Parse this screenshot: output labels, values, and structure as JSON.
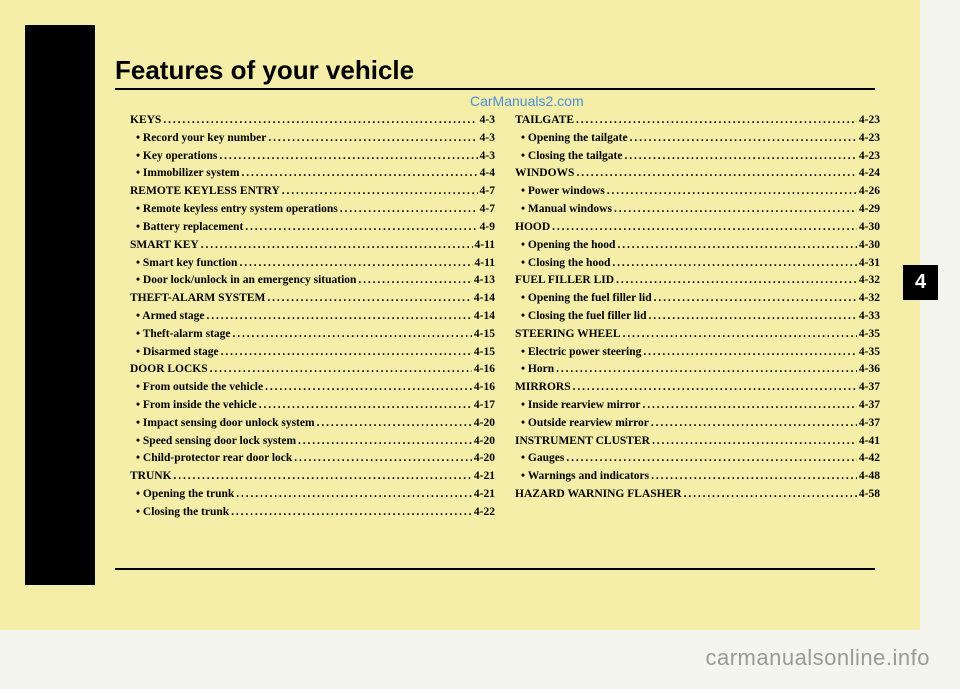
{
  "title": "Features of your vehicle",
  "watermark_top": "CarManuals2.com",
  "chapter_tab": "4",
  "footer_brand": "carmanualsonline.info",
  "colors": {
    "page_bg": "#f5eea8",
    "body_bg": "#f5f5f0",
    "text": "#000000",
    "watermark": "#4a8fd8",
    "footer": "#999999",
    "tab_bg": "#000000",
    "tab_fg": "#ffffff"
  },
  "typography": {
    "title_fontsize": 26,
    "body_fontsize": 11.5,
    "tab_fontsize": 20,
    "footer_fontsize": 22
  },
  "col1": [
    {
      "t": "h",
      "label": "KEYS",
      "page": "4-3"
    },
    {
      "t": "s",
      "label": "• Record your key number",
      "page": "4-3"
    },
    {
      "t": "s",
      "label": "• Key operations",
      "page": "4-3"
    },
    {
      "t": "s",
      "label": "• Immobilizer system",
      "page": "4-4"
    },
    {
      "t": "h",
      "label": "REMOTE KEYLESS ENTRY",
      "page": "4-7"
    },
    {
      "t": "s",
      "label": "• Remote keyless entry system operations",
      "page": "4-7"
    },
    {
      "t": "s",
      "label": "• Battery replacement",
      "page": "4-9"
    },
    {
      "t": "h",
      "label": "SMART KEY",
      "page": "4-11"
    },
    {
      "t": "s",
      "label": "• Smart key function",
      "page": "4-11"
    },
    {
      "t": "s",
      "label": "• Door lock/unlock in an emergency situation",
      "page": "4-13"
    },
    {
      "t": "h",
      "label": "THEFT-ALARM SYSTEM",
      "page": "4-14"
    },
    {
      "t": "s",
      "label": "• Armed stage",
      "page": "4-14"
    },
    {
      "t": "s",
      "label": "• Theft-alarm stage",
      "page": "4-15"
    },
    {
      "t": "s",
      "label": "• Disarmed stage",
      "page": "4-15"
    },
    {
      "t": "h",
      "label": "DOOR LOCKS",
      "page": "4-16"
    },
    {
      "t": "s",
      "label": "• From outside the vehicle",
      "page": "4-16"
    },
    {
      "t": "s",
      "label": "• From inside the vehicle",
      "page": "4-17"
    },
    {
      "t": "s",
      "label": "• Impact sensing door unlock system",
      "page": "4-20"
    },
    {
      "t": "s",
      "label": "• Speed sensing door lock system",
      "page": "4-20"
    },
    {
      "t": "s",
      "label": "• Child-protector rear door lock",
      "page": "4-20"
    },
    {
      "t": "h",
      "label": "TRUNK",
      "page": "4-21"
    },
    {
      "t": "s",
      "label": "• Opening the trunk",
      "page": "4-21"
    },
    {
      "t": "s",
      "label": "• Closing the trunk",
      "page": "4-22"
    }
  ],
  "col2": [
    {
      "t": "h",
      "label": "TAILGATE",
      "page": "4-23"
    },
    {
      "t": "s",
      "label": "• Opening the tailgate",
      "page": "4-23"
    },
    {
      "t": "s",
      "label": "• Closing the tailgate",
      "page": "4-23"
    },
    {
      "t": "h",
      "label": "WINDOWS",
      "page": "4-24"
    },
    {
      "t": "s",
      "label": "• Power windows",
      "page": "4-26"
    },
    {
      "t": "s",
      "label": "• Manual windows",
      "page": "4-29"
    },
    {
      "t": "h",
      "label": "HOOD",
      "page": "4-30"
    },
    {
      "t": "s",
      "label": "• Opening the hood",
      "page": "4-30"
    },
    {
      "t": "s",
      "label": "• Closing the hood",
      "page": "4-31"
    },
    {
      "t": "h",
      "label": "FUEL FILLER LID",
      "page": "4-32"
    },
    {
      "t": "s",
      "label": "• Opening the fuel filler lid",
      "page": "4-32"
    },
    {
      "t": "s",
      "label": "• Closing the fuel filler lid",
      "page": "4-33"
    },
    {
      "t": "h",
      "label": "STEERING WHEEL",
      "page": "4-35"
    },
    {
      "t": "s",
      "label": "• Electric power steering",
      "page": "4-35"
    },
    {
      "t": "s",
      "label": "• Horn",
      "page": "4-36"
    },
    {
      "t": "h",
      "label": "MIRRORS",
      "page": "4-37"
    },
    {
      "t": "s",
      "label": "• Inside rearview mirror",
      "page": "4-37"
    },
    {
      "t": "s",
      "label": "• Outside rearview mirror",
      "page": "4-37"
    },
    {
      "t": "h",
      "label": "INSTRUMENT CLUSTER",
      "page": "4-41"
    },
    {
      "t": "s",
      "label": "• Gauges",
      "page": "4-42"
    },
    {
      "t": "s",
      "label": "• Warnings and indicators",
      "page": "4-48"
    },
    {
      "t": "h",
      "label": "HAZARD WARNING FLASHER",
      "page": "4-58"
    }
  ]
}
